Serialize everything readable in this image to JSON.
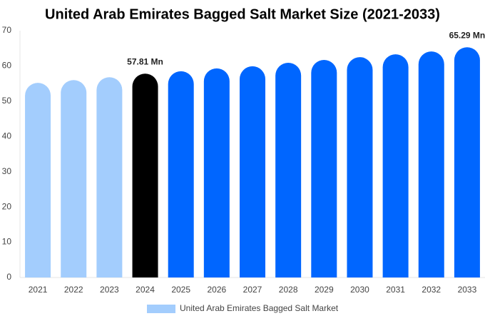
{
  "chart_data": {
    "type": "bar",
    "title": "United Arab Emirates Bagged Salt Market Size (2021-2033)",
    "categories": [
      "2021",
      "2022",
      "2023",
      "2024",
      "2025",
      "2026",
      "2027",
      "2028",
      "2029",
      "2030",
      "2031",
      "2032",
      "2033"
    ],
    "series": [
      {
        "name": "United Arab Emirates Bagged Salt Market",
        "color": "#a3cdfd",
        "values": [
          55.2,
          56.0,
          56.8,
          57.81,
          58.5,
          59.3,
          59.9,
          60.9,
          61.7,
          62.5,
          63.3,
          64.1,
          65.29
        ],
        "value_labels": [
          null,
          null,
          null,
          "57.81 Mn",
          null,
          null,
          null,
          null,
          null,
          null,
          null,
          null,
          "65.29 Mn"
        ],
        "colors": [
          "#a3cdfd",
          "#a3cdfd",
          "#a3cdfd",
          "#000000",
          "#0066ff",
          "#0066ff",
          "#0066ff",
          "#0066ff",
          "#0066ff",
          "#0066ff",
          "#0066ff",
          "#0066ff",
          "#0066ff"
        ]
      }
    ],
    "ylim": [
      0,
      70
    ],
    "yticks": [
      0,
      10,
      20,
      30,
      40,
      50,
      60,
      70
    ],
    "grid": false,
    "legend": "bottom"
  }
}
